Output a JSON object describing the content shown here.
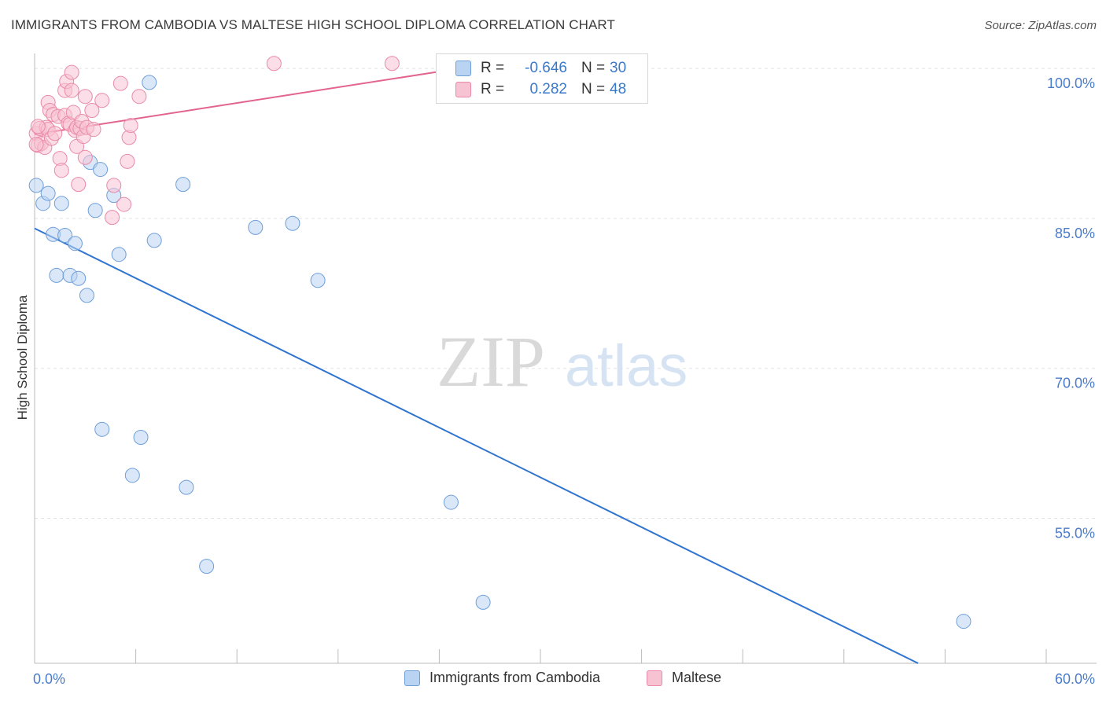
{
  "header": {
    "title": "IMMIGRANTS FROM CAMBODIA VS MALTESE HIGH SCHOOL DIPLOMA CORRELATION CHART",
    "source": "Source: ZipAtlas.com"
  },
  "watermark": {
    "zip": "ZIP",
    "atlas": "atlas"
  },
  "legend": {
    "rows": [
      {
        "r_label": "R =",
        "r_value": "-0.646",
        "n_label": "N =",
        "n_value": "30"
      },
      {
        "r_label": "R =",
        "r_value": "0.282",
        "n_label": "N =",
        "n_value": "48"
      }
    ]
  },
  "bottom_legend": {
    "items": [
      {
        "label": "Immigrants from Cambodia"
      },
      {
        "label": "Maltese"
      }
    ]
  },
  "colors": {
    "blue_fill": "#b9d3f2",
    "blue_stroke": "#6f9fd8",
    "blue_line": "#2f74d0",
    "pink_fill": "#f7c3d3",
    "pink_stroke": "#e98aa8",
    "pink_line": "#e2648f",
    "tick_text": "#4a7cc9",
    "grid": "#e3e3e3"
  },
  "chart_data": {
    "type": "scatter",
    "title": "IMMIGRANTS FROM CAMBODIA VS MALTESE HIGH SCHOOL DIPLOMA CORRELATION CHART",
    "xlabel": "",
    "ylabel": "High School Diploma",
    "xlim": [
      0,
      60
    ],
    "ylim": [
      40.5,
      101.5
    ],
    "x_tick_labels": [
      {
        "value": 0,
        "label": "0.0%"
      },
      {
        "value": 60,
        "label": "60.0%"
      }
    ],
    "x_minor_ticks": [
      0,
      6,
      12,
      18,
      24,
      30,
      36,
      42,
      48,
      54,
      60
    ],
    "y_ticks": [
      {
        "value": 100,
        "label": "100.0%"
      },
      {
        "value": 85,
        "label": "85.0%"
      },
      {
        "value": 70,
        "label": "70.0%"
      },
      {
        "value": 55,
        "label": "55.0%"
      }
    ],
    "grid": true,
    "legend_position": "top-center",
    "series": [
      {
        "name": "Immigrants from Cambodia",
        "color": "blue",
        "points": [
          [
            0.1,
            88.3
          ],
          [
            0.5,
            86.5
          ],
          [
            0.8,
            87.5
          ],
          [
            1.1,
            83.4
          ],
          [
            1.3,
            79.3
          ],
          [
            1.6,
            86.5
          ],
          [
            1.8,
            83.3
          ],
          [
            2.1,
            79.3
          ],
          [
            2.4,
            82.5
          ],
          [
            2.6,
            79.0
          ],
          [
            3.1,
            77.3
          ],
          [
            3.3,
            90.6
          ],
          [
            3.6,
            85.8
          ],
          [
            3.9,
            89.9
          ],
          [
            4.0,
            63.9
          ],
          [
            4.7,
            87.3
          ],
          [
            5.0,
            81.4
          ],
          [
            5.8,
            59.3
          ],
          [
            6.3,
            63.1
          ],
          [
            6.8,
            98.6
          ],
          [
            7.1,
            82.8
          ],
          [
            8.8,
            88.4
          ],
          [
            9.0,
            58.1
          ],
          [
            10.2,
            50.2
          ],
          [
            13.1,
            84.1
          ],
          [
            15.3,
            84.5
          ],
          [
            16.8,
            78.8
          ],
          [
            24.7,
            56.6
          ],
          [
            26.6,
            46.6
          ],
          [
            55.1,
            44.7
          ]
        ],
        "trend": {
          "x": [
            0,
            52.4
          ],
          "y": [
            84.0,
            40.5
          ]
        }
      },
      {
        "name": "Maltese",
        "color": "pink",
        "points": [
          [
            0.1,
            93.5
          ],
          [
            0.2,
            92.3
          ],
          [
            0.3,
            94.0
          ],
          [
            0.4,
            92.5
          ],
          [
            0.6,
            92.1
          ],
          [
            0.7,
            94.1
          ],
          [
            0.8,
            93.9
          ],
          [
            0.8,
            96.6
          ],
          [
            0.9,
            95.8
          ],
          [
            1.0,
            93.0
          ],
          [
            1.1,
            95.4
          ],
          [
            1.2,
            93.5
          ],
          [
            1.4,
            95.2
          ],
          [
            1.5,
            91.0
          ],
          [
            1.6,
            89.8
          ],
          [
            1.8,
            95.3
          ],
          [
            1.8,
            97.8
          ],
          [
            1.9,
            98.7
          ],
          [
            2.0,
            94.5
          ],
          [
            2.1,
            94.4
          ],
          [
            2.2,
            97.8
          ],
          [
            2.2,
            99.6
          ],
          [
            2.3,
            95.6
          ],
          [
            2.4,
            93.8
          ],
          [
            2.5,
            94.1
          ],
          [
            2.5,
            92.2
          ],
          [
            2.6,
            88.4
          ],
          [
            2.7,
            94.0
          ],
          [
            2.8,
            94.7
          ],
          [
            2.9,
            93.2
          ],
          [
            3.0,
            97.2
          ],
          [
            3.0,
            91.1
          ],
          [
            3.1,
            94.1
          ],
          [
            3.4,
            95.8
          ],
          [
            3.5,
            93.9
          ],
          [
            4.0,
            96.8
          ],
          [
            4.6,
            85.1
          ],
          [
            4.7,
            88.3
          ],
          [
            5.1,
            98.5
          ],
          [
            5.3,
            86.4
          ],
          [
            5.5,
            90.7
          ],
          [
            5.6,
            93.1
          ],
          [
            5.7,
            94.3
          ],
          [
            6.2,
            97.2
          ],
          [
            14.2,
            100.5
          ],
          [
            21.2,
            100.5
          ],
          [
            0.1,
            92.4
          ],
          [
            0.2,
            94.2
          ]
        ],
        "trend": {
          "x": [
            0,
            27.5
          ],
          "y": [
            93.4,
            100.6
          ]
        }
      }
    ]
  }
}
